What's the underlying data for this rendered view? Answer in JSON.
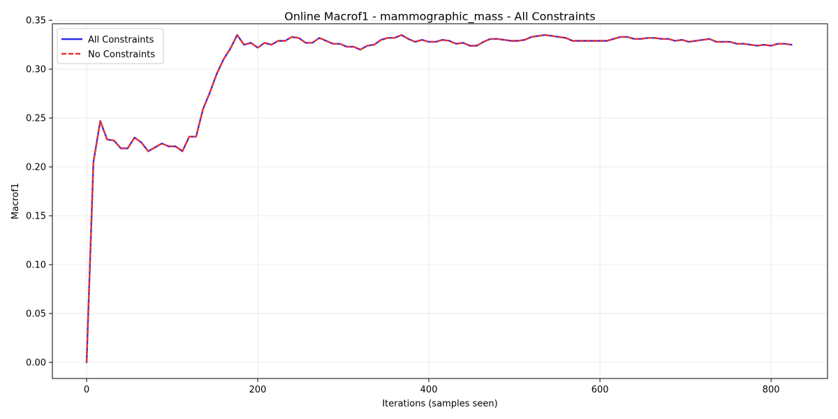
{
  "chart_data": {
    "type": "line",
    "title": "Online Macrof1 - mammographic_mass - All Constraints",
    "xlabel": "Iterations (samples seen)",
    "ylabel": "Macrof1",
    "xlim": [
      -40,
      866
    ],
    "ylim": [
      -0.0165,
      0.3465
    ],
    "xticks": [
      0,
      200,
      400,
      600,
      800
    ],
    "xtick_labels": [
      "0",
      "200",
      "400",
      "600",
      "800"
    ],
    "yticks": [
      0.0,
      0.05,
      0.1,
      0.15,
      0.2,
      0.25,
      0.3,
      0.35
    ],
    "ytick_labels": [
      "0.00",
      "0.05",
      "0.10",
      "0.15",
      "0.20",
      "0.25",
      "0.30",
      "0.35"
    ],
    "grid": true,
    "legend_position": "upper-left",
    "x": [
      0,
      8,
      16,
      24,
      32,
      40,
      48,
      56,
      64,
      72,
      80,
      88,
      96,
      104,
      112,
      120,
      128,
      136,
      144,
      152,
      160,
      168,
      176,
      184,
      192,
      200,
      208,
      216,
      224,
      232,
      240,
      248,
      256,
      264,
      272,
      280,
      288,
      296,
      304,
      312,
      320,
      328,
      336,
      344,
      352,
      360,
      368,
      376,
      384,
      392,
      400,
      408,
      416,
      424,
      432,
      440,
      448,
      456,
      464,
      472,
      480,
      488,
      496,
      504,
      512,
      520,
      528,
      536,
      544,
      552,
      560,
      568,
      576,
      584,
      592,
      600,
      608,
      616,
      624,
      632,
      640,
      648,
      656,
      664,
      672,
      680,
      688,
      696,
      704,
      712,
      720,
      728,
      736,
      744,
      752,
      760,
      768,
      776,
      784,
      792,
      800,
      808,
      816,
      824
    ],
    "series": [
      {
        "name": "All Constraints",
        "color": "#2a2ae8",
        "dash": "solid",
        "values": [
          0.0,
          0.205,
          0.247,
          0.228,
          0.227,
          0.219,
          0.219,
          0.23,
          0.225,
          0.216,
          0.22,
          0.224,
          0.221,
          0.221,
          0.216,
          0.231,
          0.231,
          0.259,
          0.276,
          0.295,
          0.31,
          0.321,
          0.335,
          0.325,
          0.327,
          0.322,
          0.327,
          0.325,
          0.329,
          0.329,
          0.333,
          0.332,
          0.327,
          0.327,
          0.332,
          0.329,
          0.326,
          0.326,
          0.323,
          0.323,
          0.32,
          0.324,
          0.325,
          0.33,
          0.332,
          0.332,
          0.335,
          0.331,
          0.328,
          0.33,
          0.328,
          0.328,
          0.33,
          0.329,
          0.326,
          0.327,
          0.324,
          0.324,
          0.328,
          0.331,
          0.331,
          0.33,
          0.329,
          0.329,
          0.33,
          0.333,
          0.334,
          0.335,
          0.334,
          0.333,
          0.332,
          0.329,
          0.329,
          0.329,
          0.329,
          0.329,
          0.329,
          0.331,
          0.333,
          0.333,
          0.331,
          0.331,
          0.332,
          0.332,
          0.331,
          0.331,
          0.329,
          0.33,
          0.328,
          0.329,
          0.33,
          0.331,
          0.328,
          0.328,
          0.328,
          0.326,
          0.326,
          0.325,
          0.324,
          0.325,
          0.324,
          0.326,
          0.326,
          0.325
        ]
      },
      {
        "name": "No Constraints",
        "color": "#ee3030",
        "dash": "dashed",
        "values": [
          0.0,
          0.205,
          0.247,
          0.228,
          0.227,
          0.219,
          0.219,
          0.23,
          0.225,
          0.216,
          0.22,
          0.224,
          0.221,
          0.221,
          0.216,
          0.231,
          0.231,
          0.259,
          0.276,
          0.295,
          0.31,
          0.321,
          0.335,
          0.325,
          0.327,
          0.322,
          0.327,
          0.325,
          0.329,
          0.329,
          0.333,
          0.332,
          0.327,
          0.327,
          0.332,
          0.329,
          0.326,
          0.326,
          0.323,
          0.323,
          0.32,
          0.324,
          0.325,
          0.33,
          0.332,
          0.332,
          0.335,
          0.331,
          0.328,
          0.33,
          0.328,
          0.328,
          0.33,
          0.329,
          0.326,
          0.327,
          0.324,
          0.324,
          0.328,
          0.331,
          0.331,
          0.33,
          0.329,
          0.329,
          0.33,
          0.333,
          0.334,
          0.335,
          0.334,
          0.333,
          0.332,
          0.329,
          0.329,
          0.329,
          0.329,
          0.329,
          0.329,
          0.331,
          0.333,
          0.333,
          0.331,
          0.331,
          0.332,
          0.332,
          0.331,
          0.331,
          0.329,
          0.33,
          0.328,
          0.329,
          0.33,
          0.331,
          0.328,
          0.328,
          0.328,
          0.326,
          0.326,
          0.325,
          0.324,
          0.325,
          0.324,
          0.326,
          0.326,
          0.325
        ]
      }
    ]
  }
}
